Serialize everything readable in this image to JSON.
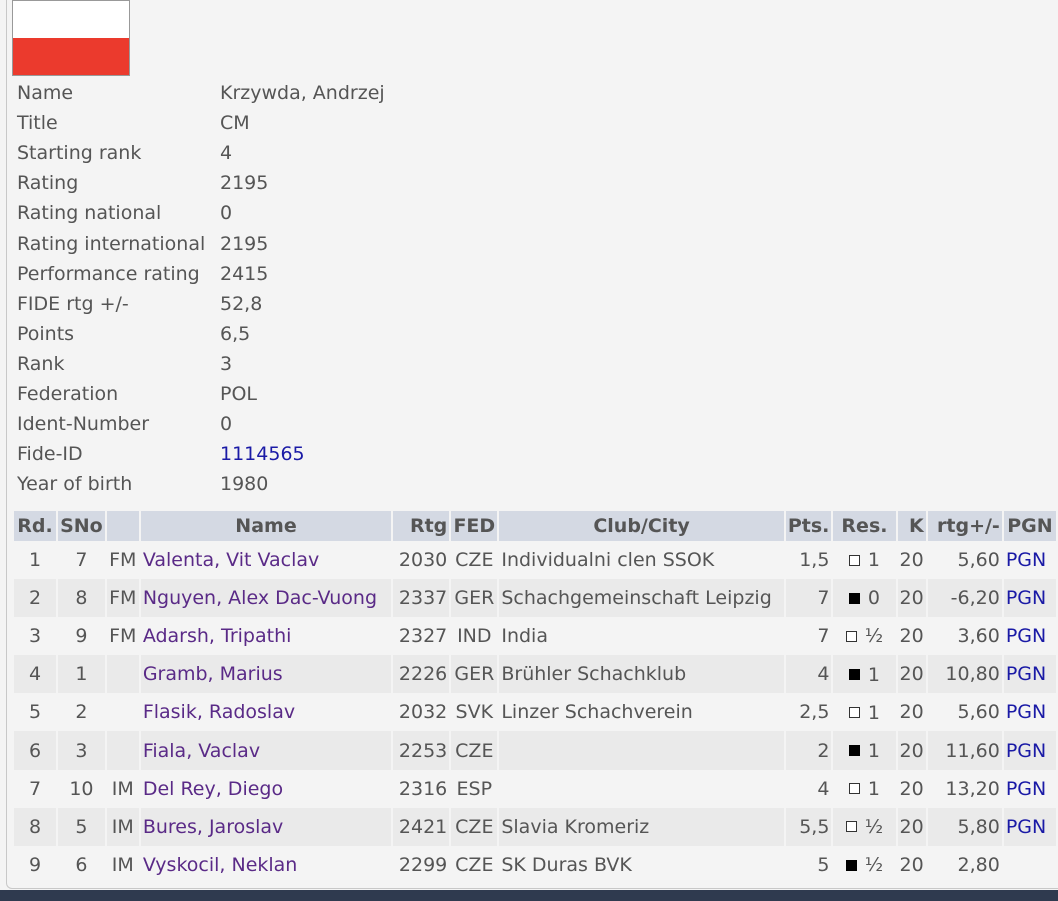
{
  "player": {
    "flag": {
      "country": "POL",
      "colors": [
        "#ffffff",
        "#eb3a2d"
      ]
    },
    "fields": [
      {
        "label": "Name",
        "value": "Krzywda, Andrzej"
      },
      {
        "label": "Title",
        "value": "CM"
      },
      {
        "label": "Starting rank",
        "value": "4"
      },
      {
        "label": "Rating",
        "value": "2195"
      },
      {
        "label": "Rating national",
        "value": "0"
      },
      {
        "label": "Rating international",
        "value": "2195"
      },
      {
        "label": "Performance rating",
        "value": "2415"
      },
      {
        "label": "FIDE rtg +/-",
        "value": "52,8"
      },
      {
        "label": "Points",
        "value": "6,5"
      },
      {
        "label": "Rank",
        "value": "3"
      },
      {
        "label": "Federation",
        "value": "POL"
      },
      {
        "label": "Ident-Number",
        "value": "0"
      },
      {
        "label": "Fide-ID",
        "value": "1114565"
      },
      {
        "label": "Year of birth",
        "value": "1980"
      }
    ]
  },
  "games_table": {
    "headers": [
      "Rd.",
      "SNo",
      "",
      "Name",
      "Rtg",
      "FED",
      "Club/City",
      "Pts.",
      "Res.",
      "K",
      "rtg+/-",
      "PGN"
    ],
    "rows": [
      {
        "rd": "1",
        "sno": "7",
        "title": "FM",
        "name": "Valenta, Vit Vaclav",
        "rtg": "2030",
        "fed": "CZE",
        "club": "Individualni clen SSOK",
        "pts": "1,5",
        "color": "white",
        "res": "1",
        "k": "20",
        "rtg_diff": "5,60",
        "pgn": "PGN"
      },
      {
        "rd": "2",
        "sno": "8",
        "title": "FM",
        "name": "Nguyen, Alex Dac-Vuong",
        "rtg": "2337",
        "fed": "GER",
        "club": "Schachgemeinschaft Leipzig",
        "pts": "7",
        "color": "black",
        "res": "0",
        "k": "20",
        "rtg_diff": "-6,20",
        "pgn": "PGN"
      },
      {
        "rd": "3",
        "sno": "9",
        "title": "FM",
        "name": "Adarsh, Tripathi",
        "rtg": "2327",
        "fed": "IND",
        "club": "India",
        "pts": "7",
        "color": "white",
        "res": "½",
        "k": "20",
        "rtg_diff": "3,60",
        "pgn": "PGN"
      },
      {
        "rd": "4",
        "sno": "1",
        "title": "",
        "name": "Gramb, Marius",
        "rtg": "2226",
        "fed": "GER",
        "club": "Brühler Schachklub",
        "pts": "4",
        "color": "black",
        "res": "1",
        "k": "20",
        "rtg_diff": "10,80",
        "pgn": "PGN"
      },
      {
        "rd": "5",
        "sno": "2",
        "title": "",
        "name": "Flasik, Radoslav",
        "rtg": "2032",
        "fed": "SVK",
        "club": "Linzer Schachverein",
        "pts": "2,5",
        "color": "white",
        "res": "1",
        "k": "20",
        "rtg_diff": "5,60",
        "pgn": "PGN"
      },
      {
        "rd": "6",
        "sno": "3",
        "title": "",
        "name": "Fiala, Vaclav",
        "rtg": "2253",
        "fed": "CZE",
        "club": "",
        "pts": "2",
        "color": "black",
        "res": "1",
        "k": "20",
        "rtg_diff": "11,60",
        "pgn": "PGN"
      },
      {
        "rd": "7",
        "sno": "10",
        "title": "IM",
        "name": "Del Rey, Diego",
        "rtg": "2316",
        "fed": "ESP",
        "club": "",
        "pts": "4",
        "color": "white",
        "res": "1",
        "k": "20",
        "rtg_diff": "13,20",
        "pgn": "PGN"
      },
      {
        "rd": "8",
        "sno": "5",
        "title": "IM",
        "name": "Bures, Jaroslav",
        "rtg": "2421",
        "fed": "CZE",
        "club": "Slavia Kromeriz",
        "pts": "5,5",
        "color": "white",
        "res": "½",
        "k": "20",
        "rtg_diff": "5,80",
        "pgn": "PGN"
      },
      {
        "rd": "9",
        "sno": "6",
        "title": "IM",
        "name": "Vyskocil, Neklan",
        "rtg": "2299",
        "fed": "CZE",
        "club": "SK Duras BVK",
        "pts": "5",
        "color": "black",
        "res": "½",
        "k": "20",
        "rtg_diff": "2,80",
        "pgn": ""
      }
    ]
  }
}
